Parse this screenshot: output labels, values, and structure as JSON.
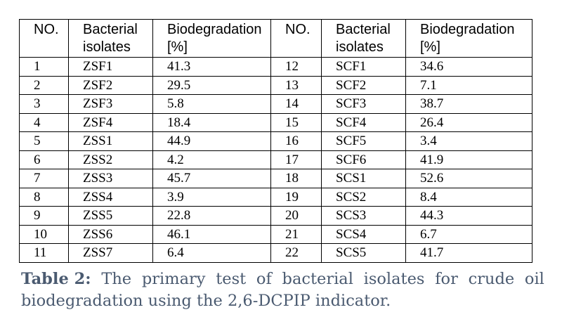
{
  "table": {
    "headers": {
      "no": "NO.",
      "isolates_1": "Bacterial",
      "isolates_2": "isolates",
      "bio_1": "Biodegradation",
      "bio_2": "[%]"
    },
    "rows": [
      {
        "no1": "1",
        "iso1": "ZSF1",
        "bio1": "41.3",
        "no2": "12",
        "iso2": "SCF1",
        "bio2": "34.6"
      },
      {
        "no1": "2",
        "iso1": "ZSF2",
        "bio1": "29.5",
        "no2": "13",
        "iso2": "SCF2",
        "bio2": "7.1"
      },
      {
        "no1": "3",
        "iso1": "ZSF3",
        "bio1": "5.8",
        "no2": "14",
        "iso2": "SCF3",
        "bio2": "38.7"
      },
      {
        "no1": "4",
        "iso1": "ZSF4",
        "bio1": "18.4",
        "no2": "15",
        "iso2": "SCF4",
        "bio2": "26.4"
      },
      {
        "no1": "5",
        "iso1": "ZSS1",
        "bio1": "44.9",
        "no2": "16",
        "iso2": "SCF5",
        "bio2": "3.4"
      },
      {
        "no1": "6",
        "iso1": "ZSS2",
        "bio1": "4.2",
        "no2": "17",
        "iso2": "SCF6",
        "bio2": "41.9"
      },
      {
        "no1": "7",
        "iso1": "ZSS3",
        "bio1": "45.7",
        "no2": "18",
        "iso2": "SCS1",
        "bio2": "52.6"
      },
      {
        "no1": "8",
        "iso1": "ZSS4",
        "bio1": "3.9",
        "no2": "19",
        "iso2": "SCS2",
        "bio2": "8.4"
      },
      {
        "no1": "9",
        "iso1": "ZSS5",
        "bio1": "22.8",
        "no2": "20",
        "iso2": "SCS3",
        "bio2": "44.3"
      },
      {
        "no1": "10",
        "iso1": "ZSS6",
        "bio1": "46.1",
        "no2": "21",
        "iso2": "SCS4",
        "bio2": "6.7"
      },
      {
        "no1": "11",
        "iso1": "ZSS7",
        "bio1": "6.4",
        "no2": "22",
        "iso2": "SCS5",
        "bio2": "41.7"
      }
    ]
  },
  "caption": {
    "label": "Table 2:",
    "line1_words": [
      "The",
      "primary",
      "test",
      "of",
      "bacterial",
      "isolates",
      "for",
      "crude",
      "oil"
    ],
    "line2": "biodegradation using the 2,6-DCPIP indicator."
  },
  "colors": {
    "caption_text": "#4a5a70",
    "border": "#000000"
  }
}
